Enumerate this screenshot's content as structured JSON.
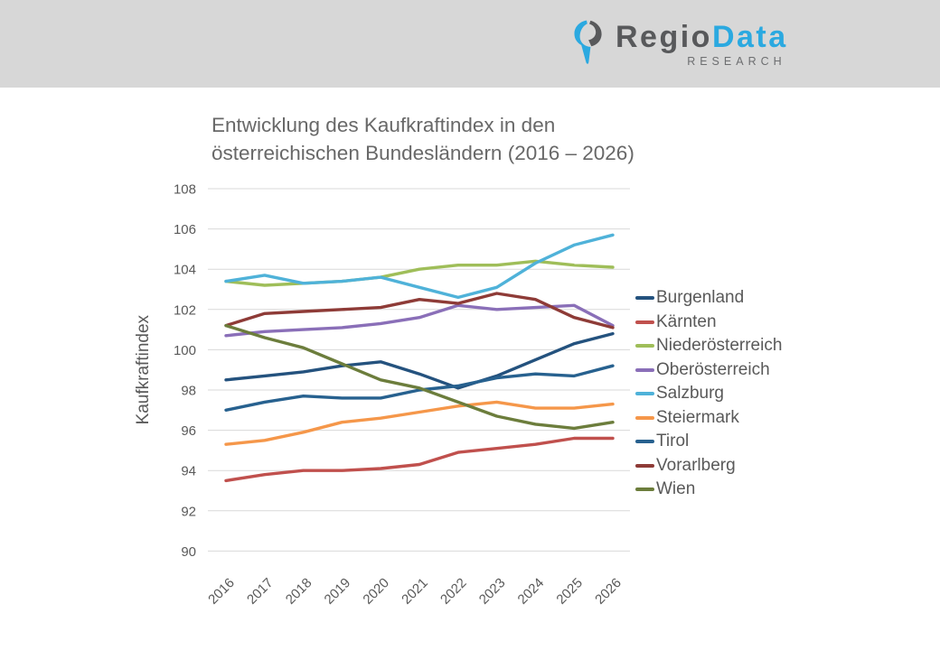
{
  "header": {
    "brand_part1": "Regio",
    "brand_part2": "Data",
    "brand_subtitle": "RESEARCH"
  },
  "chart_data": {
    "type": "line",
    "title": "Entwicklung des Kaufkraftindex in den\nösterreichischen Bundesländern (2016 – 2026)",
    "xlabel": "",
    "ylabel": "Kaufkraftindex",
    "ylim": [
      90,
      108
    ],
    "ytick_step": 2,
    "grid": "horizontal-only",
    "gridline_color": "#d9d9d9",
    "tick_label_color": "#595959",
    "legend_position": "right",
    "categories": [
      "2016",
      "2017",
      "2018",
      "2019",
      "2020",
      "2021",
      "2022",
      "2023",
      "2024",
      "2025",
      "2026"
    ],
    "series": [
      {
        "name": "Burgenland",
        "color": "#24527E",
        "values": [
          98.5,
          98.7,
          98.9,
          99.2,
          99.4,
          98.8,
          98.1,
          98.7,
          99.5,
          100.3,
          100.8
        ]
      },
      {
        "name": "Kärnten",
        "color": "#C0504D",
        "values": [
          93.5,
          93.8,
          94.0,
          94.0,
          94.1,
          94.3,
          94.9,
          95.1,
          95.3,
          95.6,
          95.6
        ]
      },
      {
        "name": "Niederösterreich",
        "color": "#9FBE59",
        "values": [
          103.4,
          103.2,
          103.3,
          103.4,
          103.6,
          104.0,
          104.2,
          104.2,
          104.4,
          104.2,
          104.1
        ]
      },
      {
        "name": "Oberösterreich",
        "color": "#8A6FB8",
        "values": [
          100.7,
          100.9,
          101.0,
          101.1,
          101.3,
          101.6,
          102.2,
          102.0,
          102.1,
          102.2,
          101.2
        ]
      },
      {
        "name": "Salzburg",
        "color": "#4FB2D9",
        "values": [
          103.4,
          103.7,
          103.3,
          103.4,
          103.6,
          103.1,
          102.6,
          103.1,
          104.3,
          105.2,
          105.7
        ]
      },
      {
        "name": "Steiermark",
        "color": "#F5974A",
        "values": [
          95.3,
          95.5,
          95.9,
          96.4,
          96.6,
          96.9,
          97.2,
          97.4,
          97.1,
          97.1,
          97.3
        ]
      },
      {
        "name": "Tirol",
        "color": "#27618F",
        "values": [
          97.0,
          97.4,
          97.7,
          97.6,
          97.6,
          98.0,
          98.2,
          98.6,
          98.8,
          98.7,
          99.2
        ]
      },
      {
        "name": "Vorarlberg",
        "color": "#8E3B37",
        "values": [
          101.2,
          101.8,
          101.9,
          102.0,
          102.1,
          102.5,
          102.3,
          102.8,
          102.5,
          101.6,
          101.1
        ]
      },
      {
        "name": "Wien",
        "color": "#6C7D3C",
        "values": [
          101.2,
          100.6,
          100.1,
          99.3,
          98.5,
          98.1,
          97.4,
          96.7,
          96.3,
          96.1,
          96.4
        ]
      }
    ]
  }
}
